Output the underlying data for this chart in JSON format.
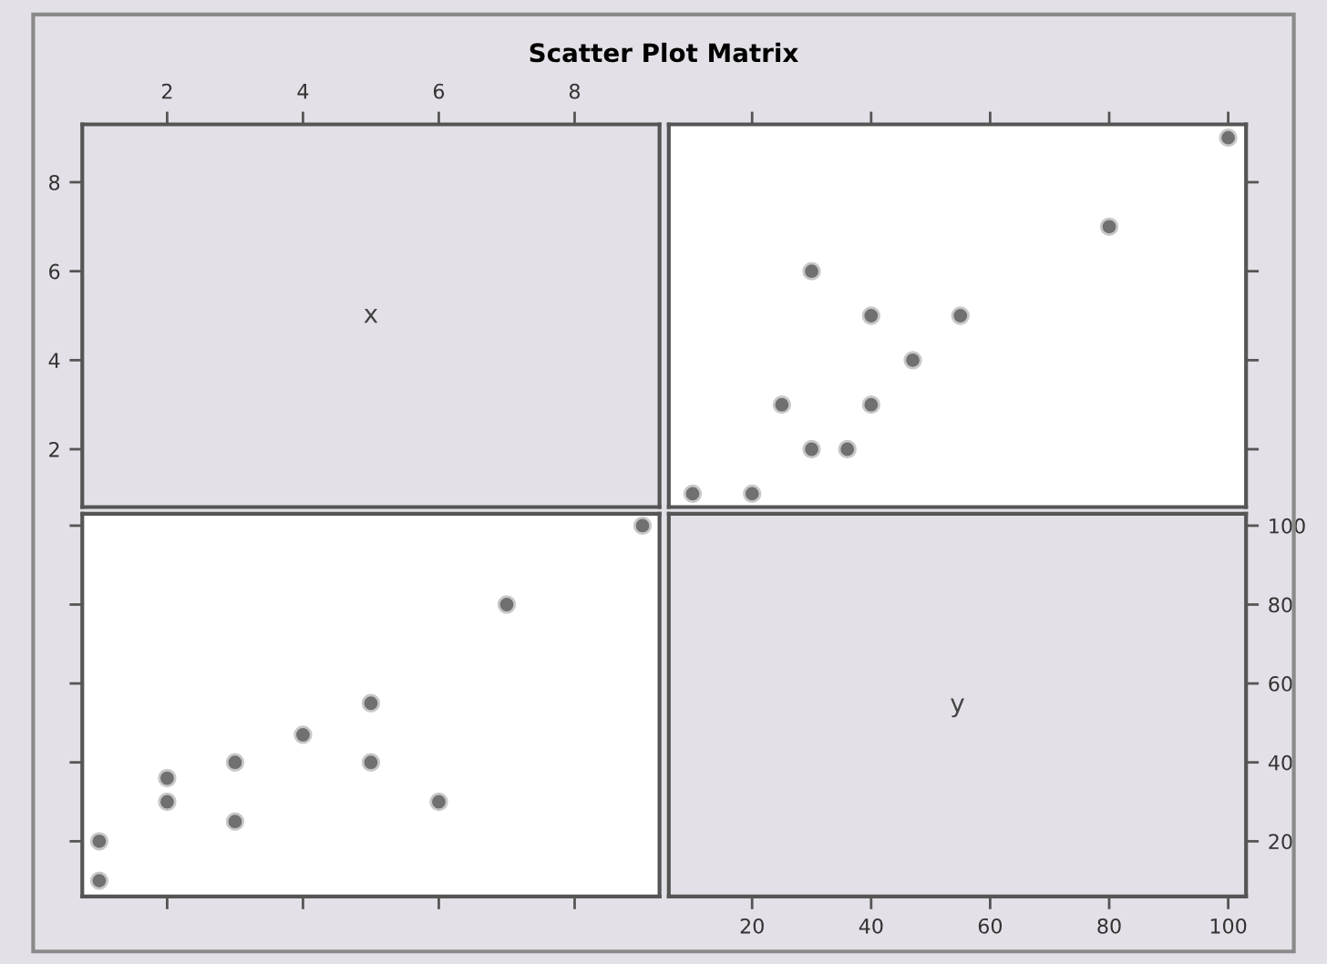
{
  "chart_data": [
    {
      "type": "scatter",
      "title": "Scatter Plot Matrix",
      "annotations": [
        "x"
      ],
      "xlim": [
        0.75,
        9.25
      ],
      "xticks": [
        2,
        4,
        6,
        8
      ],
      "ylim": [
        0.7,
        9.3
      ],
      "yticks": [
        2,
        4,
        6,
        8
      ]
    },
    {
      "type": "scatter",
      "marker": "circle",
      "xlim": [
        6,
        103
      ],
      "xticks": [
        20,
        40,
        60,
        80,
        100
      ],
      "ylim": [
        0.7,
        9.3
      ],
      "yticks": [
        2,
        4,
        6,
        8
      ],
      "tick_labels": false,
      "series": [
        {
          "color": "#707070",
          "x": [
            10,
            20,
            30,
            36,
            40,
            25,
            47,
            55,
            40,
            30,
            80,
            100
          ],
          "values": [
            1,
            1,
            2,
            2,
            3,
            3,
            4,
            5,
            5,
            6,
            7,
            9
          ]
        }
      ]
    },
    {
      "type": "scatter",
      "marker": "circle",
      "xlim": [
        0.75,
        9.25
      ],
      "xticks": [
        2,
        4,
        6,
        8
      ],
      "ylim": [
        6,
        103
      ],
      "yticks": [
        20,
        40,
        60,
        80,
        100
      ],
      "tick_labels": false,
      "series": [
        {
          "color": "#707070",
          "x": [
            1,
            1,
            2,
            2,
            3,
            3,
            4,
            5,
            5,
            6,
            7,
            9
          ],
          "values": [
            10,
            20,
            30,
            36,
            40,
            25,
            47,
            55,
            40,
            30,
            80,
            100
          ]
        }
      ]
    },
    {
      "type": "scatter",
      "annotations": [
        "y"
      ],
      "xlim": [
        6,
        103
      ],
      "xticks": [
        20,
        40,
        60,
        80,
        100
      ],
      "y2lim": [
        6,
        103
      ],
      "y2ticks": [
        20,
        40,
        60,
        80,
        100
      ]
    }
  ]
}
